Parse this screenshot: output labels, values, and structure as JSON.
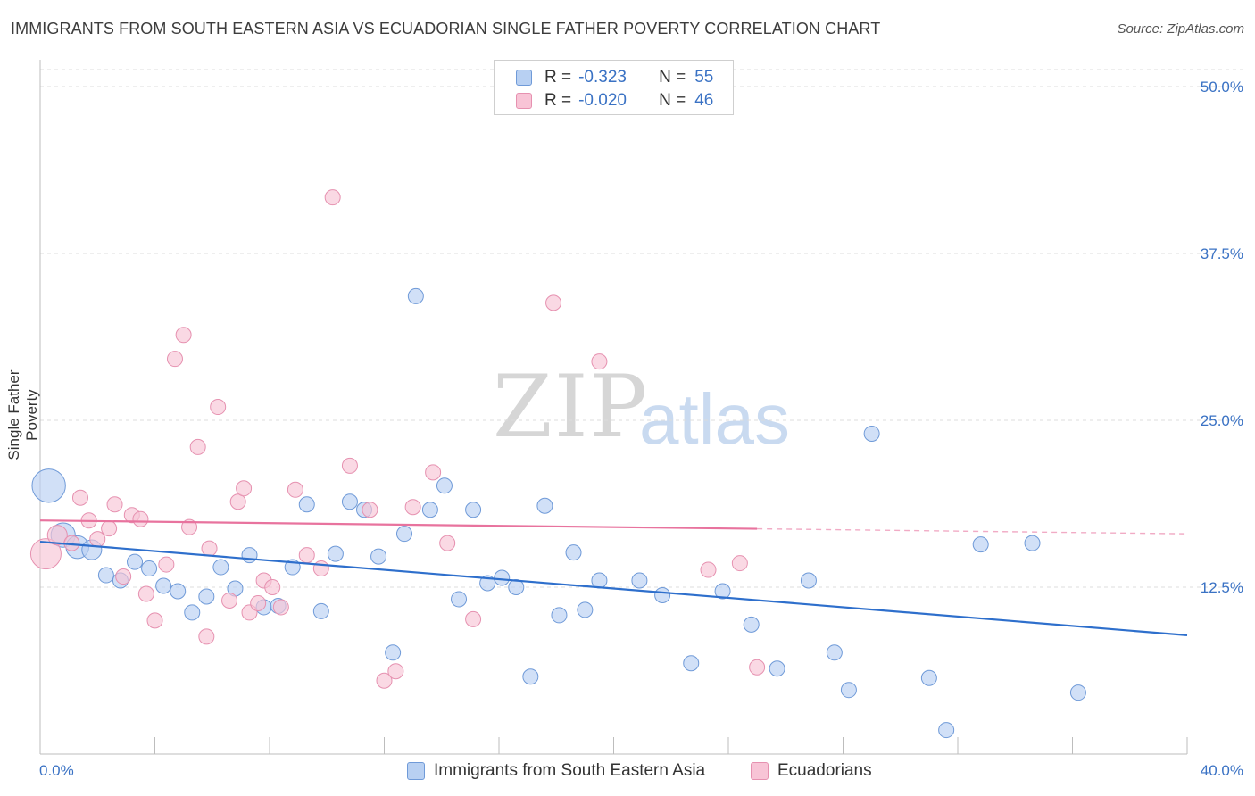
{
  "title": "IMMIGRANTS FROM SOUTH EASTERN ASIA VS ECUADORIAN SINGLE FATHER POVERTY CORRELATION CHART",
  "source": "Source: ZipAtlas.com",
  "watermark": {
    "zip": "ZIP",
    "atlas": "atlas"
  },
  "legend": {
    "rows": [
      {
        "r_label": "R =",
        "r_value": "-0.323",
        "n_label": "N =",
        "n_value": "55"
      },
      {
        "r_label": "R =",
        "r_value": "-0.020",
        "n_label": "N =",
        "n_value": "46"
      }
    ]
  },
  "bottom_legend": {
    "series1": "Immigrants from South Eastern Asia",
    "series2": "Ecuadorians"
  },
  "colors": {
    "blue_fill": "#b8d0f2",
    "blue_stroke": "#6f9ad8",
    "blue_line": "#2e6fcc",
    "pink_fill": "#f8c4d6",
    "pink_stroke": "#e691b0",
    "pink_line": "#e8739e",
    "tick_label": "#3a72c4",
    "grid": "#dcdcdc"
  },
  "chart_data": {
    "type": "scatter",
    "ylabel": "Single Father Poverty",
    "xlim": [
      0,
      40
    ],
    "ylim": [
      0,
      50
    ],
    "x_tick_labels": [
      {
        "value": 0,
        "label": "0.0%"
      },
      {
        "value": 40,
        "label": "40.0%"
      }
    ],
    "y_tick_labels": [
      {
        "value": 12.5,
        "label": "12.5%"
      },
      {
        "value": 25,
        "label": "25.0%"
      },
      {
        "value": 37.5,
        "label": "37.5%"
      },
      {
        "value": 50,
        "label": "50.0%"
      }
    ],
    "grid": true,
    "series": [
      {
        "name": "Immigrants from South Eastern Asia",
        "color": "blue",
        "trend": {
          "x": [
            0,
            40
          ],
          "y": [
            15.9,
            8.9
          ],
          "dashed_from": null
        },
        "points": [
          [
            0.3,
            20.1,
            2.2
          ],
          [
            0.8,
            16.4,
            1.6
          ],
          [
            1.3,
            15.5,
            1.5
          ],
          [
            1.8,
            15.3,
            1.3
          ],
          [
            2.3,
            13.4,
            1.0
          ],
          [
            2.8,
            13.0,
            1.0
          ],
          [
            3.3,
            14.4,
            1.0
          ],
          [
            3.8,
            13.9,
            1.0
          ],
          [
            4.3,
            12.6,
            1.0
          ],
          [
            4.8,
            12.2,
            1.0
          ],
          [
            5.3,
            10.6,
            1.0
          ],
          [
            5.8,
            11.8,
            1.0
          ],
          [
            6.3,
            14.0,
            1.0
          ],
          [
            6.8,
            12.4,
            1.0
          ],
          [
            7.3,
            14.9,
            1.0
          ],
          [
            7.8,
            11.0,
            1.0
          ],
          [
            8.3,
            11.1,
            1.0
          ],
          [
            8.8,
            14.0,
            1.0
          ],
          [
            9.3,
            18.7,
            1.0
          ],
          [
            9.8,
            10.7,
            1.0
          ],
          [
            10.3,
            15.0,
            1.0
          ],
          [
            10.8,
            18.9,
            1.0
          ],
          [
            11.3,
            18.3,
            1.0
          ],
          [
            11.8,
            14.8,
            1.0
          ],
          [
            12.3,
            7.6,
            1.0
          ],
          [
            12.7,
            16.5,
            1.0
          ],
          [
            13.1,
            34.3,
            1.0
          ],
          [
            13.6,
            18.3,
            1.0
          ],
          [
            14.1,
            20.1,
            1.0
          ],
          [
            14.6,
            11.6,
            1.0
          ],
          [
            15.1,
            18.3,
            1.0
          ],
          [
            15.6,
            12.8,
            1.0
          ],
          [
            16.1,
            13.2,
            1.0
          ],
          [
            16.6,
            12.5,
            1.0
          ],
          [
            17.1,
            5.8,
            1.0
          ],
          [
            17.6,
            18.6,
            1.0
          ],
          [
            18.1,
            10.4,
            1.0
          ],
          [
            18.6,
            15.1,
            1.0
          ],
          [
            19.0,
            10.8,
            1.0
          ],
          [
            19.5,
            13.0,
            1.0
          ],
          [
            20.9,
            13.0,
            1.0
          ],
          [
            21.7,
            11.9,
            1.0
          ],
          [
            22.7,
            6.8,
            1.0
          ],
          [
            23.8,
            12.2,
            1.0
          ],
          [
            24.8,
            9.7,
            1.0
          ],
          [
            25.7,
            6.4,
            1.0
          ],
          [
            26.8,
            13.0,
            1.0
          ],
          [
            27.7,
            7.6,
            1.0
          ],
          [
            28.2,
            4.8,
            1.0
          ],
          [
            29.0,
            24.0,
            1.0
          ],
          [
            31.0,
            5.7,
            1.0
          ],
          [
            31.6,
            1.8,
            1.0
          ],
          [
            32.8,
            15.7,
            1.0
          ],
          [
            34.6,
            15.8,
            1.0
          ],
          [
            36.2,
            4.6,
            1.0
          ]
        ]
      },
      {
        "name": "Ecuadorians",
        "color": "pink",
        "trend": {
          "x": [
            0,
            40
          ],
          "y": [
            17.5,
            16.5
          ],
          "dashed_from": 25.0
        },
        "points": [
          [
            0.2,
            15.0,
            2.0
          ],
          [
            0.6,
            16.4,
            1.3
          ],
          [
            1.1,
            15.8,
            1.0
          ],
          [
            1.4,
            19.2,
            1.0
          ],
          [
            1.7,
            17.5,
            1.0
          ],
          [
            2.0,
            16.1,
            1.0
          ],
          [
            2.4,
            16.9,
            1.0
          ],
          [
            2.6,
            18.7,
            1.0
          ],
          [
            2.9,
            13.3,
            1.0
          ],
          [
            3.2,
            17.9,
            1.0
          ],
          [
            3.5,
            17.6,
            1.0
          ],
          [
            3.7,
            12.0,
            1.0
          ],
          [
            4.0,
            10.0,
            1.0
          ],
          [
            4.4,
            14.2,
            1.0
          ],
          [
            4.7,
            29.6,
            1.0
          ],
          [
            5.0,
            31.4,
            1.0
          ],
          [
            5.2,
            17.0,
            1.0
          ],
          [
            5.5,
            23.0,
            1.0
          ],
          [
            5.8,
            8.8,
            1.0
          ],
          [
            5.9,
            15.4,
            1.0
          ],
          [
            6.2,
            26.0,
            1.0
          ],
          [
            6.6,
            11.5,
            1.0
          ],
          [
            6.9,
            18.9,
            1.0
          ],
          [
            7.1,
            19.9,
            1.0
          ],
          [
            7.3,
            10.6,
            1.0
          ],
          [
            7.6,
            11.3,
            1.0
          ],
          [
            7.8,
            13.0,
            1.0
          ],
          [
            8.1,
            12.5,
            1.0
          ],
          [
            8.4,
            11.0,
            1.0
          ],
          [
            8.9,
            19.8,
            1.0
          ],
          [
            9.3,
            14.9,
            1.0
          ],
          [
            9.8,
            13.9,
            1.0
          ],
          [
            10.2,
            41.7,
            1.0
          ],
          [
            10.8,
            21.6,
            1.0
          ],
          [
            11.5,
            18.3,
            1.0
          ],
          [
            12.0,
            5.5,
            1.0
          ],
          [
            12.4,
            6.2,
            1.0
          ],
          [
            13.0,
            18.5,
            1.0
          ],
          [
            13.7,
            21.1,
            1.0
          ],
          [
            14.2,
            15.8,
            1.0
          ],
          [
            15.1,
            10.1,
            1.0
          ],
          [
            17.9,
            33.8,
            1.0
          ],
          [
            19.5,
            29.4,
            1.0
          ],
          [
            23.3,
            13.8,
            1.0
          ],
          [
            24.4,
            14.3,
            1.0
          ],
          [
            25.0,
            6.5,
            1.0
          ]
        ]
      }
    ]
  }
}
